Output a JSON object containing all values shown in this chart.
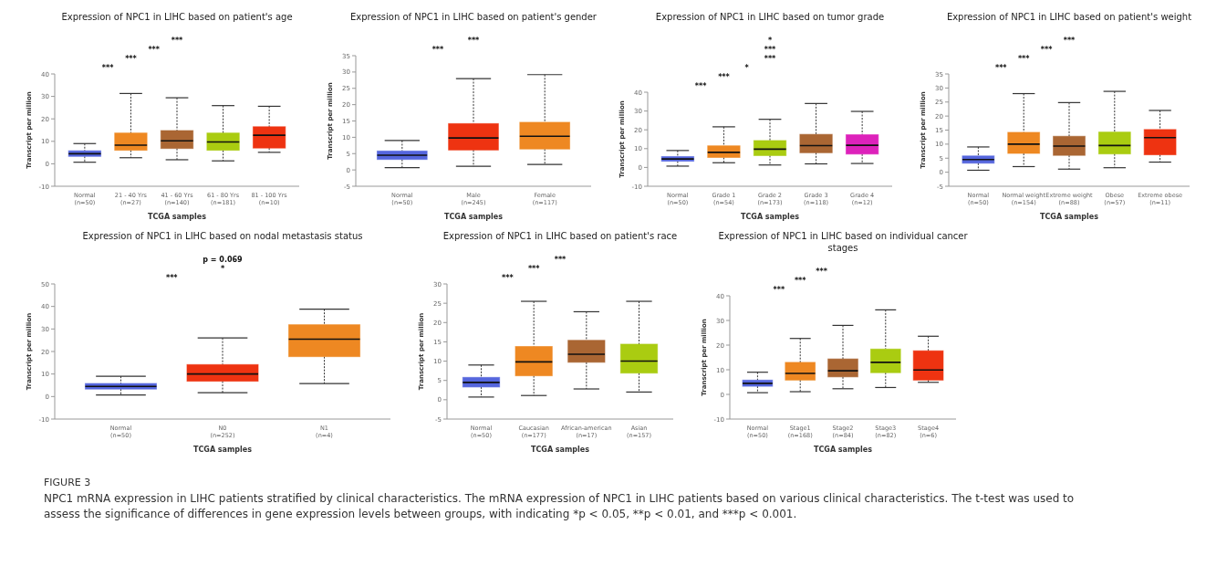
{
  "chart_data": [
    {
      "type": "box",
      "title": "Expression of NPC1 in LIHC based on patient's age",
      "xlabel": "TCGA samples",
      "ylabel": "Transcript per million",
      "categories": [
        "Normal\n(n=50)",
        "21 - 40 Yrs\n(n=27)",
        "41 - 60 Yrs\n(n=140)",
        "61 - 80 Yrs\n(n=181)",
        "81 - 100 Yrs\n(n=10)"
      ],
      "colors": [
        "#5566dd",
        "#ee8822",
        "#aa6633",
        "#aacc11",
        "#ee3311"
      ],
      "ylim": [
        -10,
        40
      ],
      "yticks": [
        -10,
        0,
        10,
        20,
        30,
        40
      ],
      "boxes": [
        {
          "low": 0.7,
          "q1": 3.3,
          "median": 4.5,
          "q3": 5.8,
          "high": 9
        },
        {
          "low": 2.7,
          "q1": 6,
          "median": 8.3,
          "q3": 13.7,
          "high": 31.3
        },
        {
          "low": 1.8,
          "q1": 6.8,
          "median": 10.2,
          "q3": 14.8,
          "high": 29.4
        },
        {
          "low": 1.3,
          "q1": 6,
          "median": 9.7,
          "q3": 13.7,
          "high": 25.9
        },
        {
          "low": 5.1,
          "q1": 7,
          "median": 12.7,
          "q3": 16.5,
          "high": 25.6
        }
      ],
      "annotations": [
        "***",
        "***",
        "***",
        "***"
      ]
    },
    {
      "type": "box",
      "title": "Expression of NPC1 in LIHC based on patient's gender",
      "xlabel": "TCGA samples",
      "ylabel": "Transcript per million",
      "categories": [
        "Normal\n(n=50)",
        "Male\n(n=245)",
        "Female\n(n=117)"
      ],
      "colors": [
        "#5566dd",
        "#ee3311",
        "#ee8822"
      ],
      "ylim": [
        -5,
        35
      ],
      "yticks": [
        -5,
        0,
        5,
        10,
        15,
        20,
        25,
        30,
        35
      ],
      "boxes": [
        {
          "low": 0.7,
          "q1": 3.2,
          "median": 4.5,
          "q3": 5.8,
          "high": 9
        },
        {
          "low": 1.1,
          "q1": 6.1,
          "median": 9.8,
          "q3": 14.2,
          "high": 28
        },
        {
          "low": 1.7,
          "q1": 6.4,
          "median": 10.3,
          "q3": 14.6,
          "high": 29.2
        }
      ],
      "annotations": [
        "***",
        "***"
      ]
    },
    {
      "type": "box",
      "title": "Expression of NPC1 in LIHC based on tumor grade",
      "xlabel": "TCGA samples",
      "ylabel": "Transcript per million",
      "categories": [
        "Normal\n(n=50)",
        "Grade 1\n(n=54)",
        "Grade 2\n(n=173)",
        "Grade 3\n(n=118)",
        "Grade 4\n(n=12)"
      ],
      "colors": [
        "#5566dd",
        "#ee8822",
        "#aacc11",
        "#aa6633",
        "#dd22bb"
      ],
      "ylim": [
        -10,
        40
      ],
      "yticks": [
        -10,
        0,
        10,
        20,
        30,
        40
      ],
      "boxes": [
        {
          "low": 0.7,
          "q1": 3.3,
          "median": 4.5,
          "q3": 5.8,
          "high": 9
        },
        {
          "low": 2.5,
          "q1": 5.3,
          "median": 8,
          "q3": 11.5,
          "high": 21.6
        },
        {
          "low": 1.3,
          "q1": 6.3,
          "median": 9.7,
          "q3": 14.3,
          "high": 25.6
        },
        {
          "low": 1.9,
          "q1": 7.8,
          "median": 11.6,
          "q3": 17.6,
          "high": 34
        },
        {
          "low": 2.1,
          "q1": 7.1,
          "median": 11.8,
          "q3": 17.4,
          "high": 29.8
        }
      ],
      "annotations": [
        "***",
        "***",
        "*",
        "***",
        "***",
        "*"
      ]
    },
    {
      "type": "box",
      "title": "Expression of NPC1 in LIHC based on patient's weight",
      "xlabel": "TCGA samples",
      "ylabel": "Transcript per million",
      "categories": [
        "Normal\n(n=50)",
        "Normal weight\n(n=154)",
        "Extreme weight\n(n=88)",
        "Obese\n(n=57)",
        "Extreme obese\n(n=11)"
      ],
      "colors": [
        "#5566dd",
        "#ee8822",
        "#aa6633",
        "#aacc11",
        "#ee3311"
      ],
      "ylim": [
        -5,
        35
      ],
      "yticks": [
        -5,
        0,
        5,
        10,
        15,
        20,
        25,
        30,
        35
      ],
      "boxes": [
        {
          "low": 0.7,
          "q1": 3.2,
          "median": 4.5,
          "q3": 5.8,
          "high": 9
        },
        {
          "low": 2,
          "q1": 6.7,
          "median": 10,
          "q3": 14.2,
          "high": 28
        },
        {
          "low": 1.1,
          "q1": 6,
          "median": 9.3,
          "q3": 12.8,
          "high": 24.8
        },
        {
          "low": 1.6,
          "q1": 6.5,
          "median": 9.5,
          "q3": 14.3,
          "high": 28.8
        },
        {
          "low": 3.6,
          "q1": 6.2,
          "median": 12.3,
          "q3": 15.2,
          "high": 22
        }
      ],
      "annotations": [
        "***",
        "***",
        "***",
        "***"
      ]
    },
    {
      "type": "box",
      "title": "Expression of NPC1 in LIHC based on nodal metastasis status",
      "xlabel": "TCGA samples",
      "ylabel": "Transcript per million",
      "categories": [
        "Normal\n(n=50)",
        "N0\n(n=252)",
        "N1\n(n=4)"
      ],
      "colors": [
        "#5566dd",
        "#ee3311",
        "#ee8822"
      ],
      "ylim": [
        -10,
        50
      ],
      "yticks": [
        -10,
        0,
        10,
        20,
        30,
        40,
        50
      ],
      "boxes": [
        {
          "low": 0.7,
          "q1": 3.3,
          "median": 4.5,
          "q3": 5.8,
          "high": 9
        },
        {
          "low": 1.7,
          "q1": 6.8,
          "median": 10,
          "q3": 14.2,
          "high": 26
        },
        {
          "low": 5.8,
          "q1": 17.7,
          "median": 25.5,
          "q3": 31.9,
          "high": 38.8
        }
      ],
      "annotations": [
        "***",
        "*",
        "p = 0.069"
      ]
    },
    {
      "type": "box",
      "title": "Expression of NPC1 in LIHC based on patient's race",
      "xlabel": "TCGA samples",
      "ylabel": "Transcript per million",
      "categories": [
        "Normal\n(n=50)",
        "Caucasian\n(n=177)",
        "African-american\n(n=17)",
        "Asian\n(n=157)"
      ],
      "colors": [
        "#5566dd",
        "#ee8822",
        "#aa6633",
        "#aacc11"
      ],
      "ylim": [
        -5,
        30
      ],
      "yticks": [
        -5,
        0,
        5,
        10,
        15,
        20,
        25,
        30
      ],
      "boxes": [
        {
          "low": 0.7,
          "q1": 3.3,
          "median": 4.5,
          "q3": 5.8,
          "high": 9
        },
        {
          "low": 1.1,
          "q1": 6.2,
          "median": 9.8,
          "q3": 13.8,
          "high": 25.5
        },
        {
          "low": 2.8,
          "q1": 9.7,
          "median": 11.8,
          "q3": 15.4,
          "high": 22.8
        },
        {
          "low": 2,
          "q1": 6.9,
          "median": 10,
          "q3": 14.4,
          "high": 25.5
        }
      ],
      "annotations": [
        "***",
        "***",
        "***"
      ]
    },
    {
      "type": "box",
      "title": "Expression of NPC1 in LIHC based on individual cancer stages",
      "xlabel": "TCGA samples",
      "ylabel": "Transcript per million",
      "categories": [
        "Normal\n(n=50)",
        "Stage1\n(n=168)",
        "Stage2\n(n=84)",
        "Stage3\n(n=82)",
        "Stage4\n(n=6)"
      ],
      "colors": [
        "#5566dd",
        "#ee8822",
        "#aa6633",
        "#aacc11",
        "#ee3311"
      ],
      "ylim": [
        -10,
        40
      ],
      "yticks": [
        -10,
        0,
        10,
        20,
        30,
        40
      ],
      "boxes": [
        {
          "low": 0.7,
          "q1": 3.3,
          "median": 4.5,
          "q3": 5.8,
          "high": 9
        },
        {
          "low": 1.1,
          "q1": 5.8,
          "median": 8.5,
          "q3": 13,
          "high": 22.7
        },
        {
          "low": 2.3,
          "q1": 7.1,
          "median": 9.6,
          "q3": 14.4,
          "high": 28
        },
        {
          "low": 2.8,
          "q1": 8.8,
          "median": 13,
          "q3": 18.4,
          "high": 34.3
        },
        {
          "low": 4.9,
          "q1": 5.8,
          "median": 9.9,
          "q3": 17.7,
          "high": 23.6
        }
      ],
      "annotations": [
        "***",
        "***",
        "***"
      ]
    },
    {
      "type": "other",
      "title": "FIGURE 3",
      "subtitle": "NPC1 mRNA expression in LIHC patients stratified by clinical characteristics. The mRNA expression of NPC1 in LIHC patients based on various clinical characteristics. The t-test was used to assess the significance of differences in gene expression levels between groups, with indicating *p < 0.05, **p < 0.01, and ***p < 0.001."
    }
  ]
}
